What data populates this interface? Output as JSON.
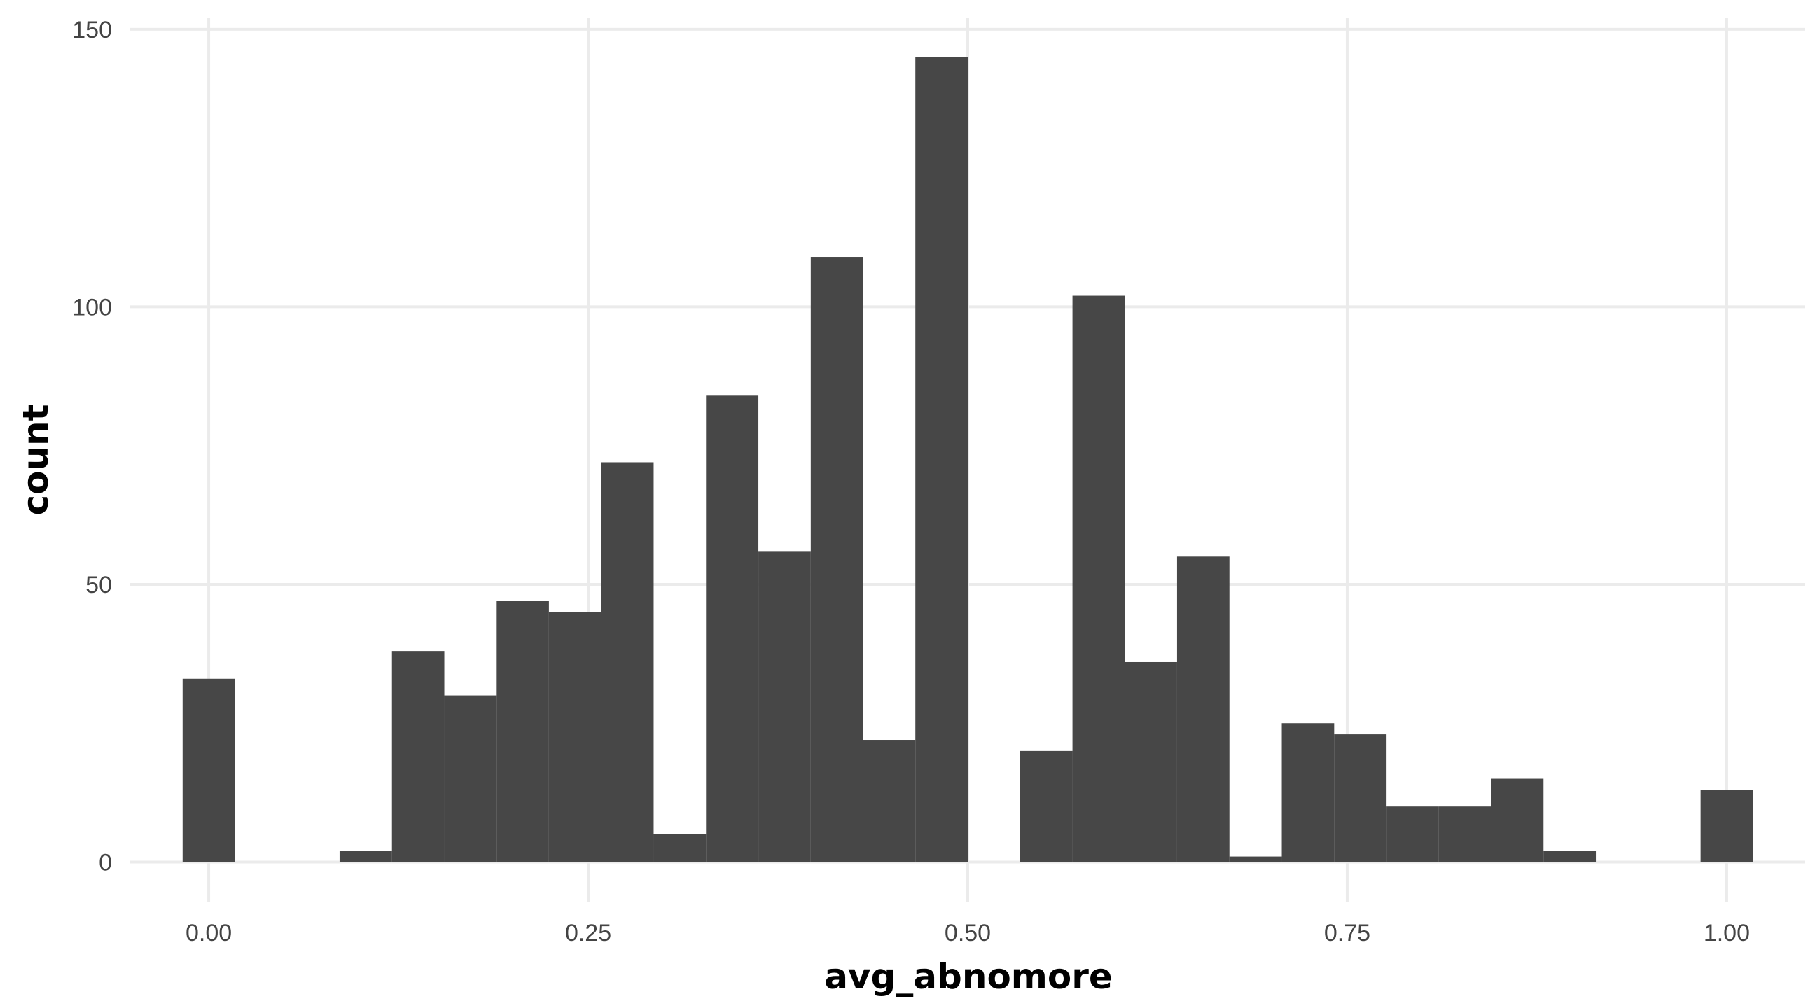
{
  "chart_data": {
    "type": "bar",
    "title": "",
    "xlabel": "avg_abnomore",
    "ylabel": "count",
    "xlim": [
      -0.0517,
      1.0517
    ],
    "ylim": [
      -7.25,
      152
    ],
    "x_ticks": [
      {
        "value": 0.0,
        "label": "0.00"
      },
      {
        "value": 0.25,
        "label": "0.25"
      },
      {
        "value": 0.5,
        "label": "0.50"
      },
      {
        "value": 0.75,
        "label": "0.75"
      },
      {
        "value": 1.0,
        "label": "1.00"
      }
    ],
    "y_ticks": [
      {
        "value": 0,
        "label": "0"
      },
      {
        "value": 50,
        "label": "50"
      },
      {
        "value": 100,
        "label": "100"
      },
      {
        "value": 150,
        "label": "150"
      }
    ],
    "grid": true,
    "bar_color": "#474747",
    "grid_color": "#ebebeb",
    "bins": [
      {
        "x0": -0.0172,
        "x1": 0.0172,
        "count": 33
      },
      {
        "x0": 0.0172,
        "x1": 0.0517,
        "count": 0
      },
      {
        "x0": 0.0517,
        "x1": 0.0862,
        "count": 0
      },
      {
        "x0": 0.0862,
        "x1": 0.1207,
        "count": 2
      },
      {
        "x0": 0.1207,
        "x1": 0.1552,
        "count": 38
      },
      {
        "x0": 0.1552,
        "x1": 0.1897,
        "count": 30
      },
      {
        "x0": 0.1897,
        "x1": 0.2241,
        "count": 47
      },
      {
        "x0": 0.2241,
        "x1": 0.2586,
        "count": 45
      },
      {
        "x0": 0.2586,
        "x1": 0.2931,
        "count": 72
      },
      {
        "x0": 0.2931,
        "x1": 0.3276,
        "count": 5
      },
      {
        "x0": 0.3276,
        "x1": 0.3621,
        "count": 84
      },
      {
        "x0": 0.3621,
        "x1": 0.3966,
        "count": 56
      },
      {
        "x0": 0.3966,
        "x1": 0.431,
        "count": 109
      },
      {
        "x0": 0.431,
        "x1": 0.4655,
        "count": 22
      },
      {
        "x0": 0.4655,
        "x1": 0.5,
        "count": 145
      },
      {
        "x0": 0.5,
        "x1": 0.5345,
        "count": 0
      },
      {
        "x0": 0.5345,
        "x1": 0.569,
        "count": 20
      },
      {
        "x0": 0.569,
        "x1": 0.6034,
        "count": 102
      },
      {
        "x0": 0.6034,
        "x1": 0.6379,
        "count": 36
      },
      {
        "x0": 0.6379,
        "x1": 0.6724,
        "count": 55
      },
      {
        "x0": 0.6724,
        "x1": 0.7069,
        "count": 1
      },
      {
        "x0": 0.7069,
        "x1": 0.7414,
        "count": 25
      },
      {
        "x0": 0.7414,
        "x1": 0.7759,
        "count": 23
      },
      {
        "x0": 0.7759,
        "x1": 0.8103,
        "count": 10
      },
      {
        "x0": 0.8103,
        "x1": 0.8448,
        "count": 10
      },
      {
        "x0": 0.8448,
        "x1": 0.8793,
        "count": 15
      },
      {
        "x0": 0.8793,
        "x1": 0.9138,
        "count": 2
      },
      {
        "x0": 0.9138,
        "x1": 0.9483,
        "count": 0
      },
      {
        "x0": 0.9483,
        "x1": 0.9828,
        "count": 0
      },
      {
        "x0": 0.9828,
        "x1": 1.0172,
        "count": 13
      }
    ]
  }
}
